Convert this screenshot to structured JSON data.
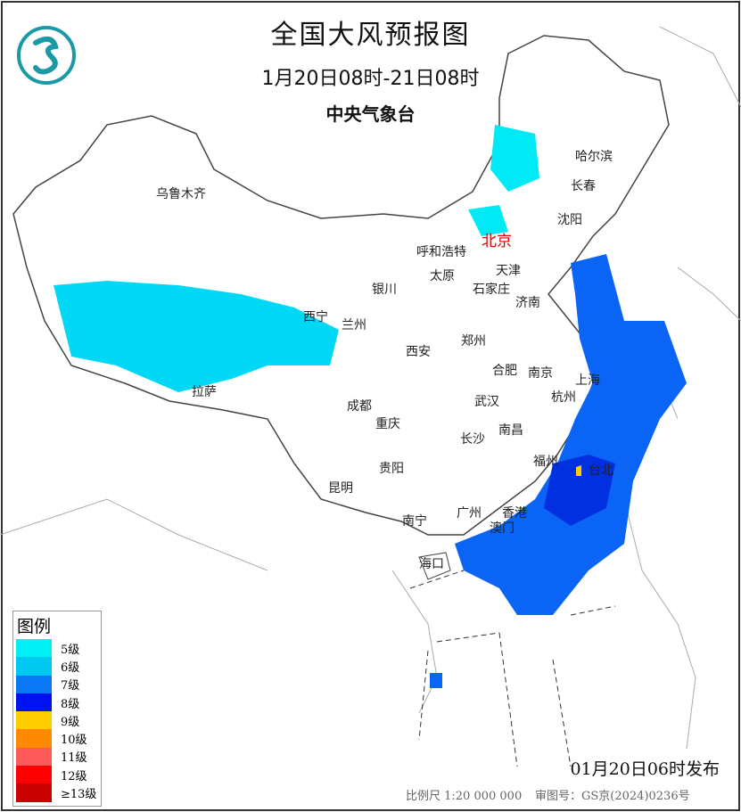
{
  "header": {
    "title": "全国大风预报图",
    "period": "1月20日08时-21日08时",
    "agency": "中央气象台"
  },
  "cities": [
    {
      "name": "乌鲁木齐"
    },
    {
      "name": "哈尔滨"
    },
    {
      "name": "长春"
    },
    {
      "name": "沈阳"
    },
    {
      "name": "北京",
      "capital": true
    },
    {
      "name": "呼和浩特"
    },
    {
      "name": "天津"
    },
    {
      "name": "太原"
    },
    {
      "name": "石家庄"
    },
    {
      "name": "银川"
    },
    {
      "name": "济南"
    },
    {
      "name": "西宁"
    },
    {
      "name": "兰州"
    },
    {
      "name": "郑州"
    },
    {
      "name": "西安"
    },
    {
      "name": "合肥"
    },
    {
      "name": "南京"
    },
    {
      "name": "上海"
    },
    {
      "name": "杭州"
    },
    {
      "name": "拉萨"
    },
    {
      "name": "成都"
    },
    {
      "name": "武汉"
    },
    {
      "name": "重庆"
    },
    {
      "name": "长沙"
    },
    {
      "name": "南昌"
    },
    {
      "name": "福州"
    },
    {
      "name": "台北"
    },
    {
      "name": "贵阳"
    },
    {
      "name": "昆明"
    },
    {
      "name": "南宁"
    },
    {
      "name": "广州"
    },
    {
      "name": "香港"
    },
    {
      "name": "澳门"
    },
    {
      "name": "海口"
    }
  ],
  "legend": {
    "title": "图例",
    "items": [
      {
        "label": "5级",
        "color": "#00f0f5"
      },
      {
        "label": "6级",
        "color": "#00c8f0"
      },
      {
        "label": "7级",
        "color": "#0a78f5"
      },
      {
        "label": "8级",
        "color": "#0012f0"
      },
      {
        "label": "9级",
        "color": "#ffcc00"
      },
      {
        "label": "10级",
        "color": "#ff8a00"
      },
      {
        "label": "11级",
        "color": "#ff5a5a"
      },
      {
        "label": "12级",
        "color": "#ff0000"
      },
      {
        "label": "≥13级",
        "color": "#c80000"
      }
    ]
  },
  "footer": {
    "issued": "01月20日06时发布",
    "scale": "比例尺 1:20 000 000",
    "review_number": "审图号：GS京(2024)0236号"
  }
}
